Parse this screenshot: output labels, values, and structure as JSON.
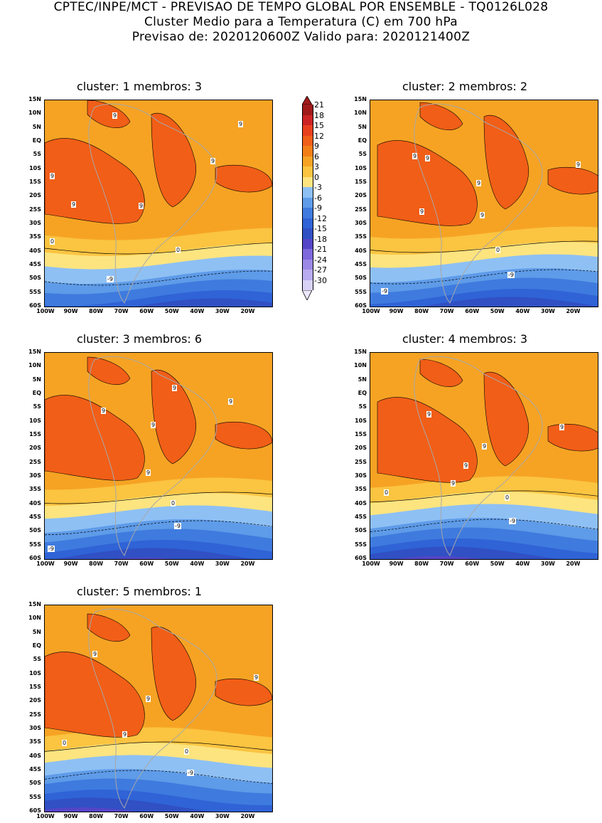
{
  "header": {
    "line1": "CPTEC/INPE/MCT - PREVISAO DE TEMPO GLOBAL POR ENSEMBLE - TQ0126L028",
    "line2": "Cluster Medio para a Temperatura (C) em 700 hPa",
    "line3": "Previsao de: 2020120600Z   Valido para: 2020121400Z"
  },
  "panels": [
    {
      "title": "cluster: 1   membros: 3",
      "labels": [
        "9",
        "9",
        "9",
        "9",
        "9",
        "9",
        "0",
        "0",
        "-9"
      ]
    },
    {
      "title": "cluster: 2   membros: 2",
      "labels": [
        "9",
        "9",
        "9",
        "9",
        "9",
        "9",
        "0",
        "-9",
        "-9"
      ]
    },
    {
      "title": "cluster: 3   membros: 6",
      "labels": [
        "9",
        "9",
        "9",
        "9",
        "9",
        "0",
        "-9",
        "-9"
      ]
    },
    {
      "title": "cluster: 4   membros: 3",
      "labels": [
        "9",
        "9",
        "9",
        "9",
        "9",
        "0",
        "0",
        "-9"
      ]
    },
    {
      "title": "cluster: 5   membros: 1",
      "labels": [
        "9",
        "9",
        "9",
        "9",
        "0",
        "0",
        "-9"
      ]
    }
  ],
  "lat_ticks": [
    "15N",
    "10N",
    "5N",
    "EQ",
    "5S",
    "10S",
    "15S",
    "20S",
    "25S",
    "30S",
    "35S",
    "40S",
    "45S",
    "50S",
    "55S",
    "60S"
  ],
  "lon_ticks": [
    "100W",
    "90W",
    "80W",
    "70W",
    "60W",
    "50W",
    "40W",
    "30W",
    "20W"
  ],
  "colorbar": {
    "labels": [
      "21",
      "18",
      "15",
      "12",
      "9",
      "6",
      "3",
      "0",
      "-3",
      "-6",
      "-9",
      "-12",
      "-15",
      "-18",
      "-21",
      "-24",
      "-27",
      "-30"
    ],
    "colors": [
      "#a01a1a",
      "#cc2424",
      "#e8401f",
      "#f15e17",
      "#f27e16",
      "#f6a324",
      "#fbc441",
      "#fde47f",
      "#8ec0f4",
      "#5e9be8",
      "#3f7bde",
      "#2f63d6",
      "#3050c4",
      "#5545c8",
      "#7d68dc",
      "#9b89e6",
      "#b8acef",
      "#d9d2f7"
    ]
  }
}
